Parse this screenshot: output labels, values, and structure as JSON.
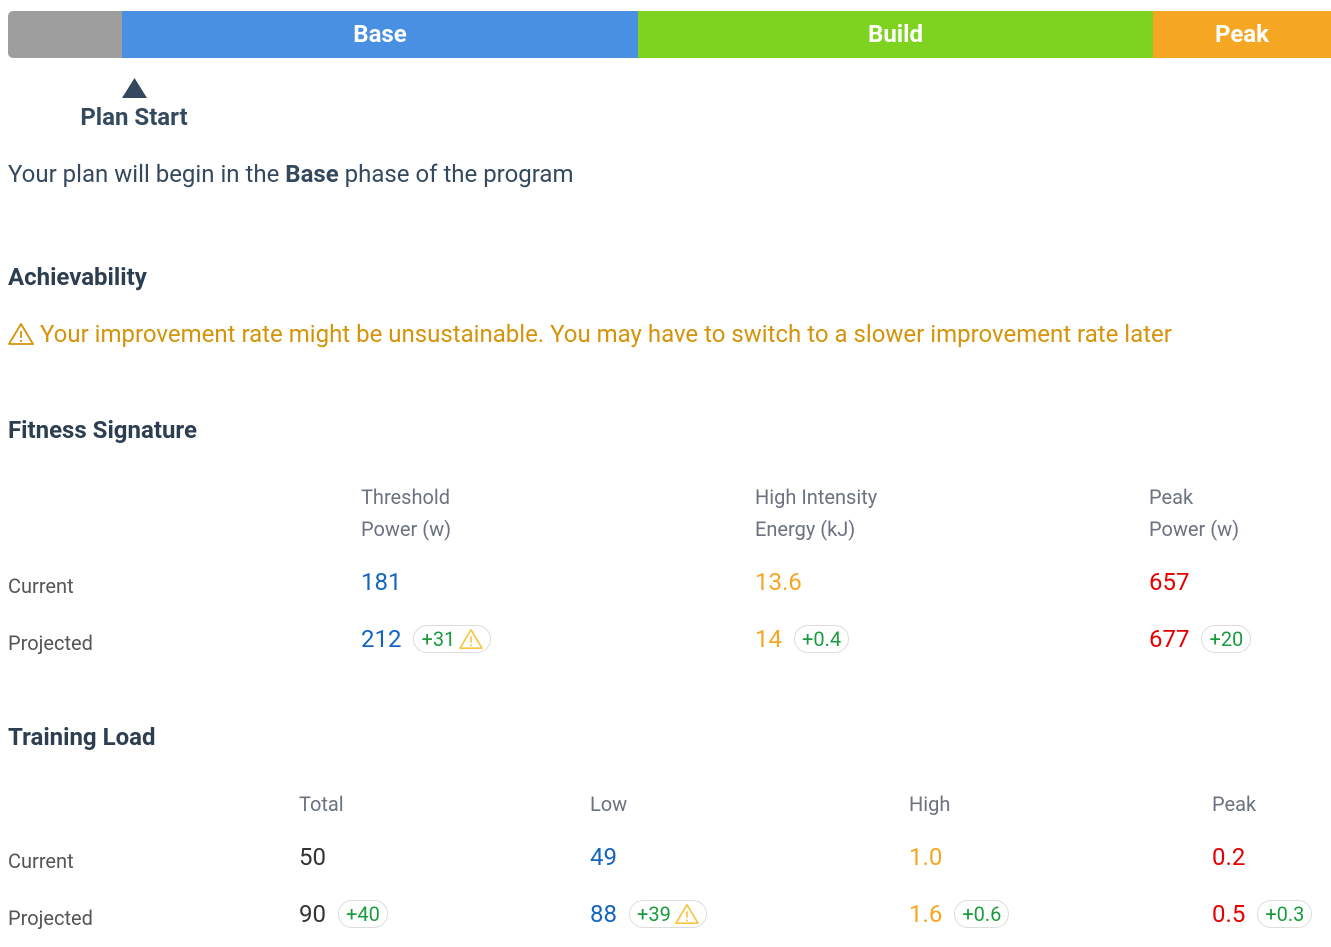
{
  "phases": [
    {
      "name": "",
      "color": "#9e9e9e"
    },
    {
      "name": "Base",
      "color": "#4a90e2"
    },
    {
      "name": "Build",
      "color": "#7ed321"
    },
    {
      "name": "Peak",
      "color": "#f5a623"
    }
  ],
  "marker": {
    "label": "Plan Start"
  },
  "intro": {
    "before": "Your plan will begin in the ",
    "bold": "Base",
    "after": " phase of the program"
  },
  "achievability": {
    "heading": "Achievability",
    "warning": "Your improvement rate might be unsustainable. You may have to switch to a slower improvement rate later"
  },
  "fitness": {
    "heading": "Fitness Signature",
    "columns": [
      {
        "lines": [
          "Threshold",
          "Power (w)"
        ],
        "color": "#1565c0"
      },
      {
        "lines": [
          "High Intensity",
          "Energy (kJ)"
        ],
        "color": "#f5a623"
      },
      {
        "lines": [
          "Peak",
          "Power (w)"
        ],
        "color": "#e60000"
      }
    ],
    "rows": [
      {
        "label": "Current",
        "cells": [
          {
            "value": "181"
          },
          {
            "value": "13.6"
          },
          {
            "value": "657"
          }
        ]
      },
      {
        "label": "Projected",
        "cells": [
          {
            "value": "212",
            "delta": "+31",
            "warning": true
          },
          {
            "value": "14",
            "delta": "+0.4"
          },
          {
            "value": "677",
            "delta": "+20"
          }
        ]
      }
    ]
  },
  "load": {
    "heading": "Training Load",
    "columns": [
      {
        "lines": [
          "Total"
        ],
        "color": "#333333"
      },
      {
        "lines": [
          "Low"
        ],
        "color": "#1565c0"
      },
      {
        "lines": [
          "High"
        ],
        "color": "#f5a623"
      },
      {
        "lines": [
          "Peak"
        ],
        "color": "#e60000"
      }
    ],
    "rows": [
      {
        "label": "Current",
        "cells": [
          {
            "value": "50"
          },
          {
            "value": "49"
          },
          {
            "value": "1.0"
          },
          {
            "value": "0.2"
          }
        ]
      },
      {
        "label": "Projected",
        "cells": [
          {
            "value": "90",
            "delta": "+40"
          },
          {
            "value": "88",
            "delta": "+39",
            "warning": true
          },
          {
            "value": "1.6",
            "delta": "+0.6"
          },
          {
            "value": "0.5",
            "delta": "+0.3"
          }
        ]
      }
    ]
  }
}
